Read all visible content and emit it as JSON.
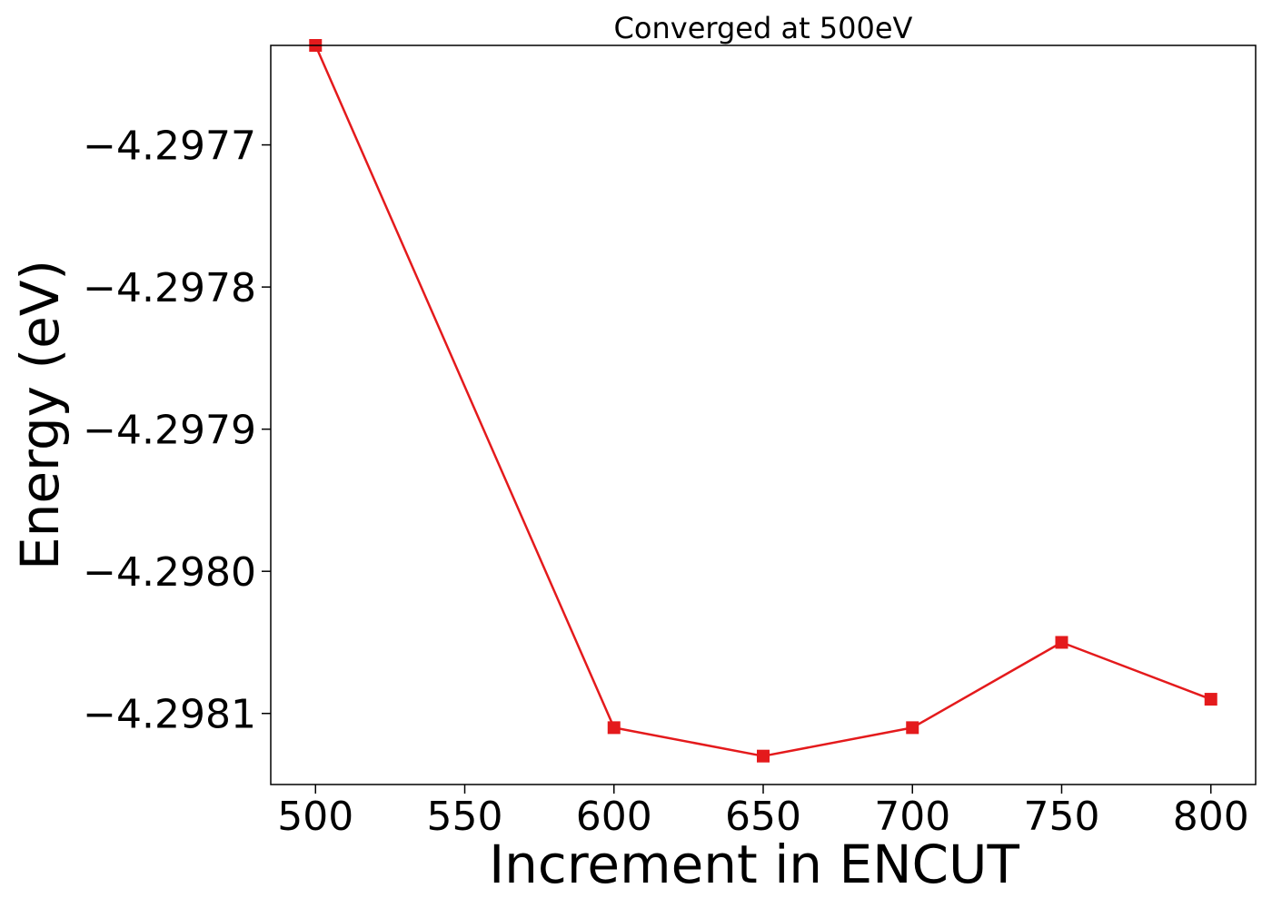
{
  "chart_data": {
    "type": "line",
    "title": "Converged at 500eV",
    "xlabel": "Increment in ENCUT",
    "ylabel": "Energy (eV)",
    "xlim": [
      485,
      815
    ],
    "ylim": [
      -4.29815,
      -4.29763
    ],
    "xticks": [
      500,
      550,
      600,
      650,
      700,
      750,
      800
    ],
    "xtick_labels": [
      "500",
      "550",
      "600",
      "650",
      "700",
      "750",
      "800"
    ],
    "yticks": [
      -4.2977,
      -4.2978,
      -4.2979,
      -4.298,
      -4.2981
    ],
    "ytick_labels": [
      "−4.2977",
      "−4.2978",
      "−4.2979",
      "−4.2980",
      "−4.2981"
    ],
    "grid": false,
    "legend": "none",
    "series": [
      {
        "color": "#e41a1c",
        "marker": "square",
        "x": [
          500,
          600,
          650,
          700,
          750,
          800
        ],
        "y": [
          -4.29763,
          -4.29811,
          -4.29813,
          -4.29811,
          -4.29805,
          -4.29809
        ]
      }
    ]
  }
}
